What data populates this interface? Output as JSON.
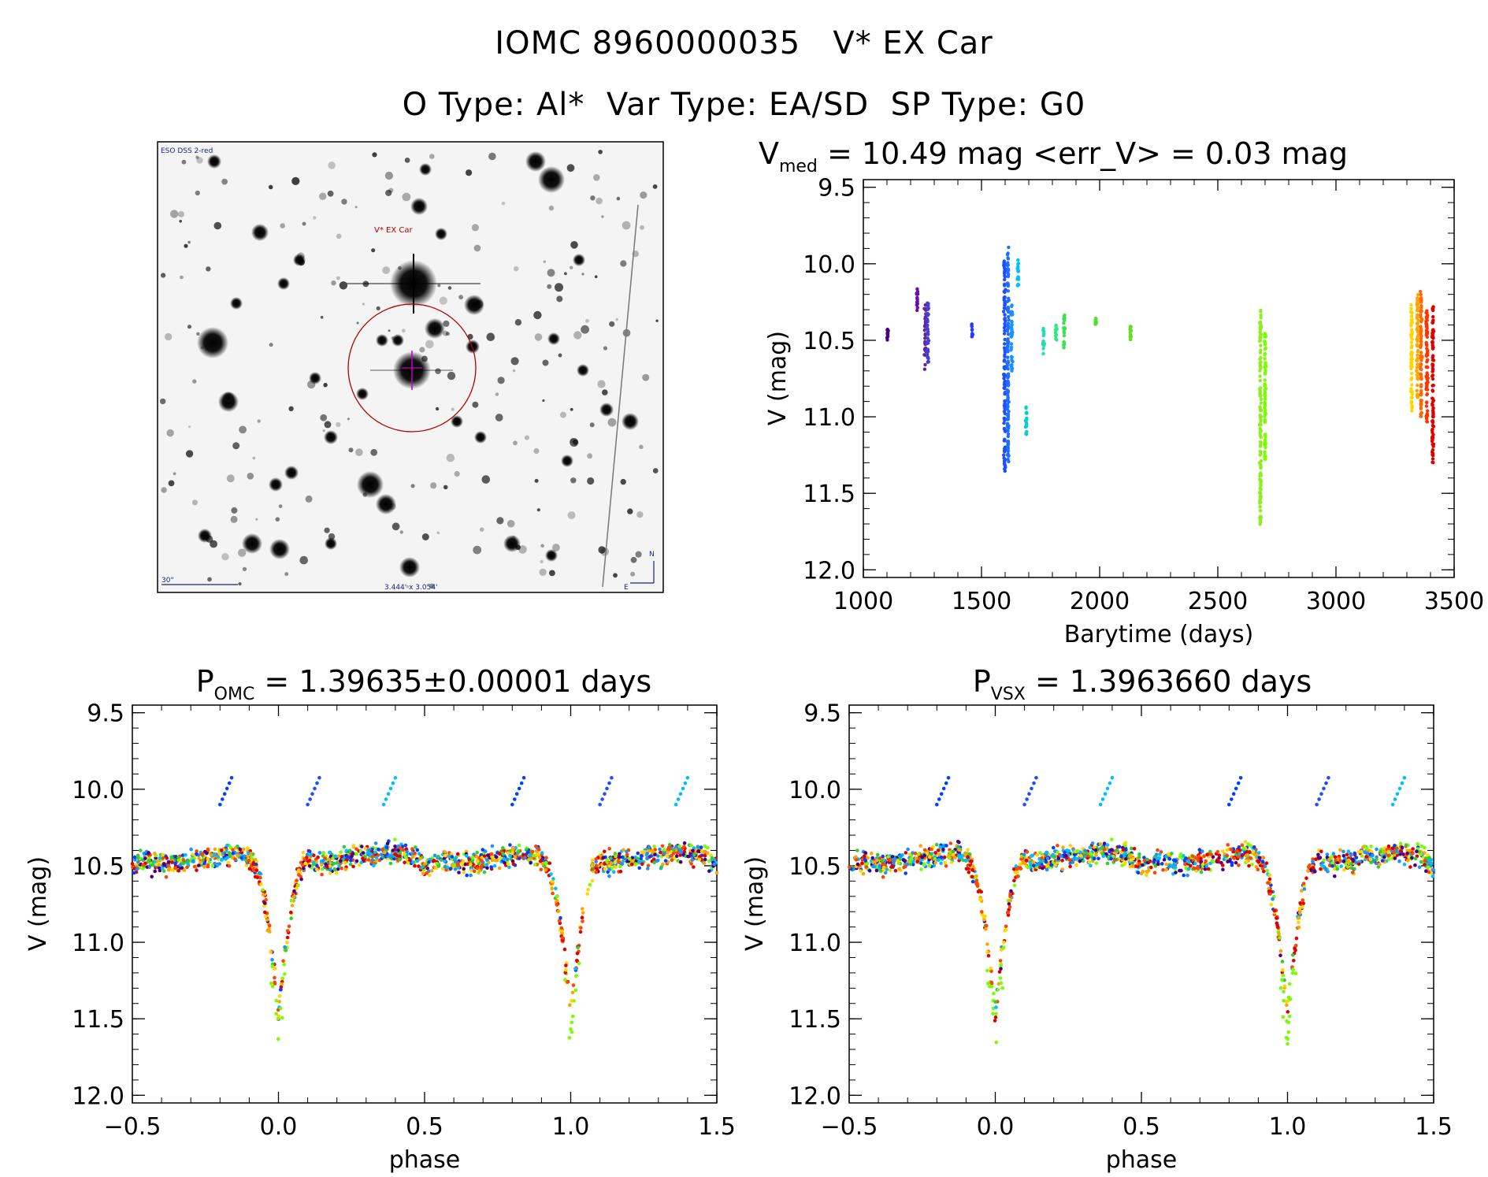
{
  "title": {
    "line1": "IOMC 8960000035   V* EX Car",
    "line2": "O Type: Al*  Var Type: EA/SD  SP Type: G0"
  },
  "finder_image": {
    "survey_label": "ESO DSS 2-red",
    "target_label": "V* EX Car",
    "scale_label": "30\"",
    "fov_label": "3.444' x 3.054'",
    "north_label": "N",
    "east_label": "E",
    "marker_color": "#b00000",
    "annotation_color": "#1a237e"
  },
  "chart_data": [
    {
      "id": "lightcurve",
      "type": "scatter",
      "title_main": "V",
      "title_sub": "med",
      "title_rest": " = 10.49 mag <err_V> = 0.03 mag",
      "xlabel": "Barytime (days)",
      "ylabel": "V (mag)",
      "xlim": [
        1000,
        3500
      ],
      "ylim": [
        12.05,
        9.45
      ],
      "xticks": [
        1000,
        1500,
        2000,
        2500,
        3000,
        3500
      ],
      "yticks": [
        9.5,
        10.0,
        10.5,
        11.0,
        11.5,
        12.0
      ],
      "xtick_labels": [
        "1000",
        "1500",
        "2000",
        "2500",
        "3000",
        "3500"
      ],
      "ytick_labels": [
        "9.5",
        "10.0",
        "10.5",
        "11.0",
        "11.5",
        "12.0"
      ],
      "segments": [
        {
          "t": 1102,
          "v_min": 10.42,
          "v_max": 10.5,
          "color": "#4b0082"
        },
        {
          "t": 1228,
          "v_min": 10.15,
          "v_max": 10.32,
          "color": "#6a0dad"
        },
        {
          "t": 1262,
          "v_min": 10.25,
          "v_max": 10.7,
          "color": "#5b2a9a"
        },
        {
          "t": 1273,
          "v_min": 10.25,
          "v_max": 10.65,
          "color": "#4a3cd6"
        },
        {
          "t": 1460,
          "v_min": 10.38,
          "v_max": 10.48,
          "color": "#2a3cff"
        },
        {
          "t": 1598,
          "v_min": 9.98,
          "v_max": 11.37,
          "color": "#1f4fff"
        },
        {
          "t": 1612,
          "v_min": 9.88,
          "v_max": 11.3,
          "color": "#1f6fff"
        },
        {
          "t": 1628,
          "v_min": 10.25,
          "v_max": 10.72,
          "color": "#1e90ff"
        },
        {
          "t": 1655,
          "v_min": 9.97,
          "v_max": 10.15,
          "color": "#00bfff"
        },
        {
          "t": 1690,
          "v_min": 10.92,
          "v_max": 11.12,
          "color": "#00ced1"
        },
        {
          "t": 1762,
          "v_min": 10.42,
          "v_max": 10.6,
          "color": "#20e0b0"
        },
        {
          "t": 1815,
          "v_min": 10.4,
          "v_max": 10.5,
          "color": "#30e880"
        },
        {
          "t": 1850,
          "v_min": 10.32,
          "v_max": 10.55,
          "color": "#3ce050"
        },
        {
          "t": 1985,
          "v_min": 10.35,
          "v_max": 10.4,
          "color": "#50e030"
        },
        {
          "t": 2130,
          "v_min": 10.4,
          "v_max": 10.5,
          "color": "#60e020"
        },
        {
          "t": 2680,
          "v_min": 10.3,
          "v_max": 11.72,
          "color": "#90ee20"
        },
        {
          "t": 2700,
          "v_min": 10.45,
          "v_max": 11.3,
          "color": "#7cfc00"
        },
        {
          "t": 3320,
          "v_min": 10.25,
          "v_max": 10.98,
          "color": "#ffd700"
        },
        {
          "t": 3345,
          "v_min": 10.2,
          "v_max": 10.9,
          "color": "#ffa500"
        },
        {
          "t": 3360,
          "v_min": 10.18,
          "v_max": 11.0,
          "color": "#ff6a00"
        },
        {
          "t": 3385,
          "v_min": 10.3,
          "v_max": 11.05,
          "color": "#ff3300"
        },
        {
          "t": 3410,
          "v_min": 10.28,
          "v_max": 11.3,
          "color": "#e00000"
        }
      ]
    },
    {
      "id": "phase_omc",
      "type": "scatter",
      "title_main": "P",
      "title_sub": "OMC",
      "title_rest": " = 1.39635±0.00001 days",
      "xlabel": "phase",
      "ylabel": "V (mag)",
      "xlim": [
        -0.5,
        1.5
      ],
      "ylim": [
        12.05,
        9.45
      ],
      "xticks": [
        -0.5,
        0.0,
        0.5,
        1.0,
        1.5
      ],
      "yticks": [
        9.5,
        10.0,
        10.5,
        11.0,
        11.5,
        12.0
      ],
      "xtick_labels": [
        "−0.5",
        "0.0",
        "0.5",
        "1.0",
        "1.5"
      ],
      "ytick_labels": [
        "9.5",
        "10.0",
        "10.5",
        "11.0",
        "11.5",
        "12.0"
      ],
      "baseline_mag": 10.45,
      "primary_minimum_mag": 11.72,
      "eclipse_phase": 0.0,
      "colors": [
        "#4b0082",
        "#1e90ff",
        "#0040ff",
        "#00bfff",
        "#32cd32",
        "#7cfc00",
        "#ffd700",
        "#ffa500",
        "#ff4500",
        "#e00000"
      ]
    },
    {
      "id": "phase_vsx",
      "type": "scatter",
      "title_main": "P",
      "title_sub": "VSX",
      "title_rest": " = 1.3963660 days",
      "xlabel": "phase",
      "ylabel": "V (mag)",
      "xlim": [
        -0.5,
        1.5
      ],
      "ylim": [
        12.05,
        9.45
      ],
      "xticks": [
        -0.5,
        0.0,
        0.5,
        1.0,
        1.5
      ],
      "yticks": [
        9.5,
        10.0,
        10.5,
        11.0,
        11.5,
        12.0
      ],
      "xtick_labels": [
        "−0.5",
        "0.0",
        "0.5",
        "1.0",
        "1.5"
      ],
      "ytick_labels": [
        "9.5",
        "10.0",
        "10.5",
        "11.0",
        "11.5",
        "12.0"
      ],
      "baseline_mag": 10.45,
      "primary_minimum_mag": 11.72,
      "eclipse_phase": 0.0,
      "colors": [
        "#4b0082",
        "#1e90ff",
        "#0040ff",
        "#00bfff",
        "#32cd32",
        "#7cfc00",
        "#ffd700",
        "#ffa500",
        "#ff4500",
        "#e00000"
      ]
    }
  ]
}
